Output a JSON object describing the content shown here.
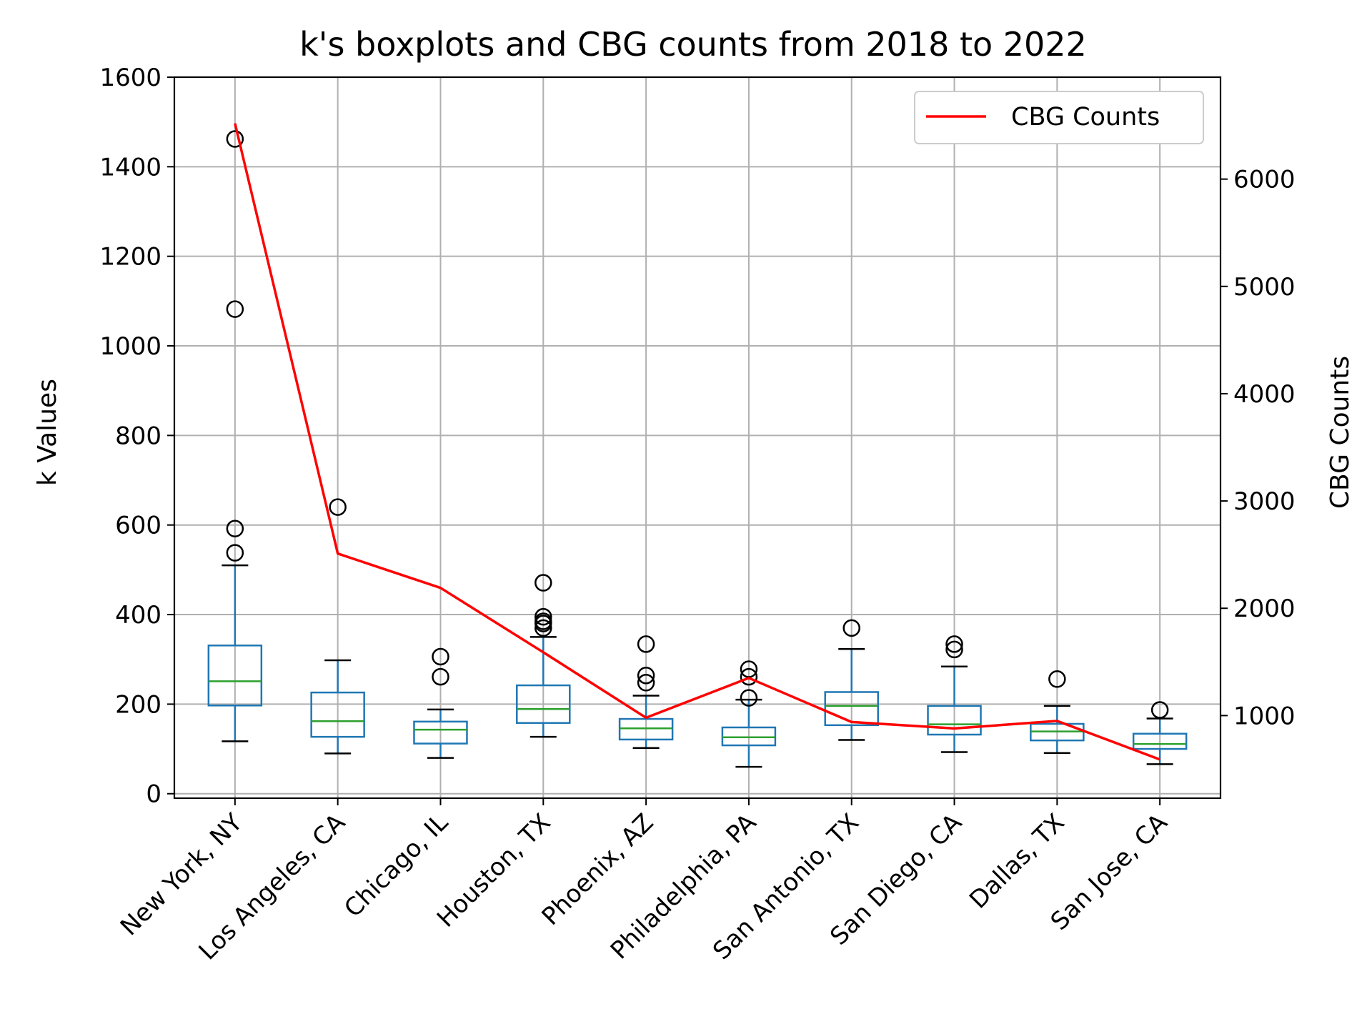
{
  "chart_data": {
    "type": "boxplot",
    "title": "k's boxplots and CBG counts from 2018 to 2022",
    "xlabel": "",
    "ylabel": "k Values",
    "ylabel_right": "CBG Counts",
    "categories": [
      "New York, NY",
      "Los Angeles, CA",
      "Chicago, IL",
      "Houston, TX",
      "Phoenix, AZ",
      "Philadelphia, PA",
      "San Antonio, TX",
      "San Diego, CA",
      "Dallas, TX",
      "San Jose, CA"
    ],
    "ylim": [
      -10,
      1600
    ],
    "yticks": [
      0,
      200,
      400,
      600,
      800,
      1000,
      1200,
      1400,
      1600
    ],
    "ylim_right": [
      230,
      6950
    ],
    "yticks_right": [
      1000,
      2000,
      3000,
      4000,
      5000,
      6000
    ],
    "grid": true,
    "legend": {
      "position": "top-right",
      "entries": [
        "CBG Counts"
      ]
    },
    "colors": {
      "box": "#1f77b4",
      "median": "#2ca02c",
      "line": "#ff0000",
      "grid": "#b0b0b0"
    },
    "boxes": [
      {
        "whisker_low": 117,
        "q1": 197,
        "median": 251,
        "q3": 331,
        "whisker_high": 510,
        "outliers": [
          538,
          592,
          1082,
          1462
        ]
      },
      {
        "whisker_low": 90,
        "q1": 127,
        "median": 162,
        "q3": 226,
        "whisker_high": 298,
        "outliers": [
          640
        ]
      },
      {
        "whisker_low": 80,
        "q1": 112,
        "median": 143,
        "q3": 161,
        "whisker_high": 188,
        "outliers": [
          261,
          306
        ]
      },
      {
        "whisker_low": 127,
        "q1": 158,
        "median": 189,
        "q3": 242,
        "whisker_high": 350,
        "outliers": [
          370,
          380,
          385,
          395,
          471
        ]
      },
      {
        "whisker_low": 102,
        "q1": 121,
        "median": 146,
        "q3": 167,
        "whisker_high": 219,
        "outliers": [
          248,
          264,
          334
        ]
      },
      {
        "whisker_low": 60,
        "q1": 108,
        "median": 126,
        "q3": 148,
        "whisker_high": 210,
        "outliers": [
          214,
          261,
          278
        ]
      },
      {
        "whisker_low": 120,
        "q1": 153,
        "median": 196,
        "q3": 227,
        "whisker_high": 323,
        "outliers": [
          370
        ]
      },
      {
        "whisker_low": 93,
        "q1": 132,
        "median": 155,
        "q3": 196,
        "whisker_high": 284,
        "outliers": [
          322,
          334
        ]
      },
      {
        "whisker_low": 91,
        "q1": 119,
        "median": 139,
        "q3": 156,
        "whisker_high": 196,
        "outliers": [
          256
        ]
      },
      {
        "whisker_low": 66,
        "q1": 100,
        "median": 111,
        "q3": 134,
        "whisker_high": 168,
        "outliers": [
          187
        ]
      }
    ],
    "series": [
      {
        "name": "CBG Counts",
        "type": "line",
        "axis": "right",
        "values": [
          6520,
          2510,
          2190,
          1590,
          980,
          1350,
          940,
          880,
          950,
          590
        ]
      }
    ]
  }
}
